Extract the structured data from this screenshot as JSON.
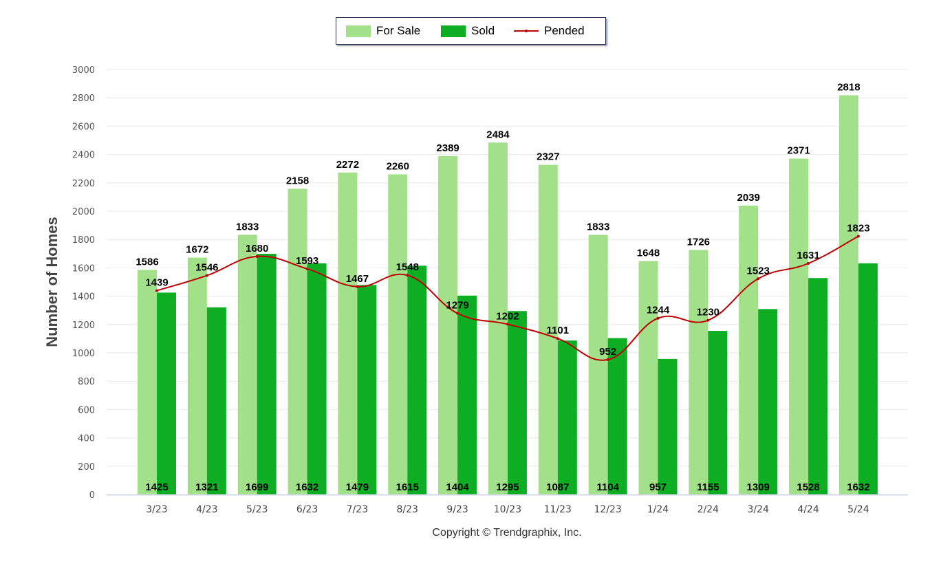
{
  "legend": {
    "for_sale": "For Sale",
    "sold": "Sold",
    "pended": "Pended"
  },
  "copyright": "Copyright © Trendgraphix, Inc.",
  "chart_data": {
    "type": "bar",
    "title": "",
    "xlabel": "",
    "ylabel": "Number of Homes",
    "ylim": [
      0,
      3000
    ],
    "yticks": [
      0,
      200,
      400,
      600,
      800,
      1000,
      1200,
      1400,
      1600,
      1800,
      2000,
      2200,
      2400,
      2600,
      2800,
      3000
    ],
    "grid": true,
    "legend_position": "top-center",
    "categories": [
      "3/23",
      "4/23",
      "5/23",
      "6/23",
      "7/23",
      "8/23",
      "9/23",
      "10/23",
      "11/23",
      "12/23",
      "1/24",
      "2/24",
      "3/24",
      "4/24",
      "5/24"
    ],
    "series": [
      {
        "name": "For Sale",
        "type": "bar",
        "color": "#a2e08a",
        "values": [
          1586,
          1672,
          1833,
          2158,
          2272,
          2260,
          2389,
          2484,
          2327,
          1833,
          1648,
          1726,
          2039,
          2371,
          2818
        ]
      },
      {
        "name": "Sold",
        "type": "bar",
        "color": "#0eae24",
        "values": [
          1425,
          1321,
          1699,
          1632,
          1479,
          1615,
          1404,
          1295,
          1087,
          1104,
          957,
          1155,
          1309,
          1528,
          1632
        ]
      },
      {
        "name": "Pended",
        "type": "line",
        "color": "#c00000",
        "values": [
          1439,
          1546,
          1680,
          1593,
          1467,
          1548,
          1279,
          1202,
          1101,
          952,
          1244,
          1230,
          1523,
          1631,
          1823
        ]
      }
    ]
  }
}
